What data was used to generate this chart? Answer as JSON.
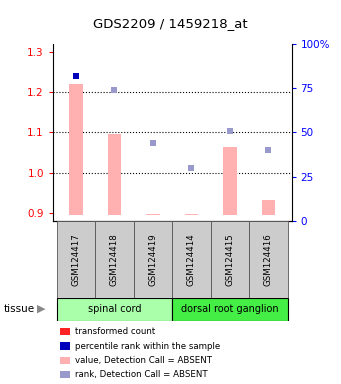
{
  "title": "GDS2209 / 1459218_at",
  "samples": [
    "GSM124417",
    "GSM124418",
    "GSM124419",
    "GSM124414",
    "GSM124415",
    "GSM124416"
  ],
  "ylim_left": [
    0.88,
    1.32
  ],
  "ylim_right": [
    0,
    100
  ],
  "yticks_left": [
    0.9,
    1.0,
    1.1,
    1.2,
    1.3
  ],
  "yticks_right": [
    0,
    25,
    50,
    75,
    100
  ],
  "ytick_labels_right": [
    "0",
    "25",
    "50",
    "75",
    "100%"
  ],
  "bar_values": [
    1.222,
    1.097,
    0.897,
    0.897,
    1.065,
    0.932
  ],
  "bar_absent": [
    true,
    true,
    true,
    true,
    true,
    true
  ],
  "bar_color_present": "#FF2222",
  "bar_color_absent": "#FFB0B0",
  "bar_base": 0.895,
  "rank_values": [
    82,
    74,
    44,
    30,
    51,
    40
  ],
  "rank_absent": [
    false,
    true,
    true,
    true,
    true,
    true
  ],
  "rank_color_present": "#0000BB",
  "rank_color_absent": "#9999CC",
  "hline_y": [
    1.0,
    1.1,
    1.2
  ],
  "tissue_groups": [
    {
      "label": "spinal cord",
      "indices": [
        0,
        1,
        2
      ],
      "color": "#AAFFAA"
    },
    {
      "label": "dorsal root ganglion",
      "indices": [
        3,
        4,
        5
      ],
      "color": "#44EE44"
    }
  ],
  "legend": [
    {
      "color": "#FF2222",
      "label": "transformed count"
    },
    {
      "color": "#0000BB",
      "label": "percentile rank within the sample"
    },
    {
      "color": "#FFB0B0",
      "label": "value, Detection Call = ABSENT"
    },
    {
      "color": "#9999CC",
      "label": "rank, Detection Call = ABSENT"
    }
  ]
}
